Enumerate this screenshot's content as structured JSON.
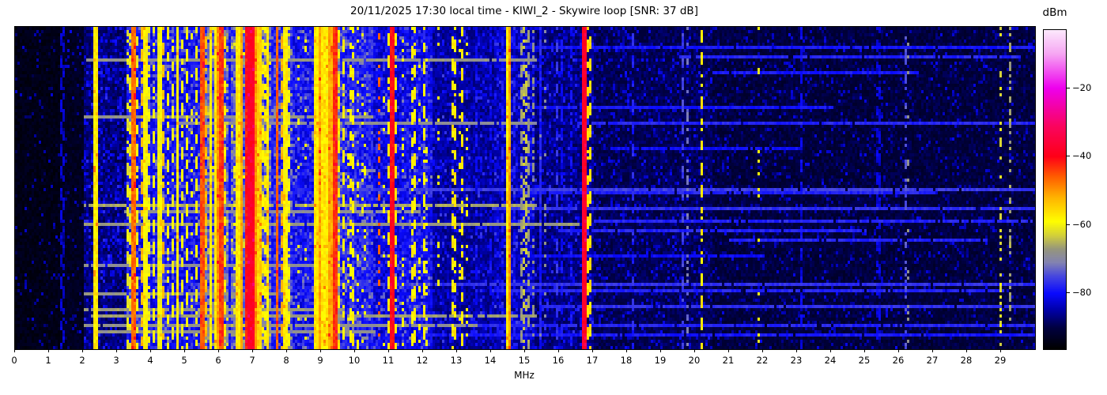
{
  "figure": {
    "title": "20/11/2025 17:30 local time - KIWI_2 - Skywire loop [SNR: 37 dB]",
    "xlabel": "MHz",
    "colorbar_label": "dBm"
  },
  "chart_data": {
    "type": "heatmap",
    "title": "20/11/2025 17:30 local time - KIWI_2 - Skywire loop [SNR: 37 dB]",
    "xlabel": "MHz",
    "x_range_mhz": [
      0,
      30
    ],
    "x_tick_labels": [
      "0",
      "1",
      "2",
      "3",
      "4",
      "5",
      "6",
      "7",
      "8",
      "9",
      "10",
      "11",
      "12",
      "13",
      "14",
      "15",
      "16",
      "17",
      "18",
      "19",
      "20",
      "21",
      "22",
      "23",
      "24",
      "25",
      "26",
      "27",
      "28",
      "29"
    ],
    "grid": {
      "cols": 430,
      "rows": 102
    },
    "colorbar": {
      "label": "dBm",
      "vmax": -3,
      "vmin": -96.3,
      "ticks": [
        {
          "label": "−20",
          "value": -20
        },
        {
          "label": "−40",
          "value": -40
        },
        {
          "label": "−60",
          "value": -60
        },
        {
          "label": "−80",
          "value": -80
        }
      ]
    },
    "colormap_stops": [
      [
        -96.3,
        "#000000"
      ],
      [
        -90,
        "#000041"
      ],
      [
        -85,
        "#0000a6"
      ],
      [
        -80,
        "#0a0aff"
      ],
      [
        -75,
        "#4747e0"
      ],
      [
        -71,
        "#8383b2"
      ],
      [
        -67,
        "#97977c"
      ],
      [
        -63,
        "#d4d13a"
      ],
      [
        -59,
        "#ffff00"
      ],
      [
        -52,
        "#ffb400"
      ],
      [
        -46,
        "#ff5f00"
      ],
      [
        -40,
        "#ff0018"
      ],
      [
        -31,
        "#fa0560"
      ],
      [
        -20,
        "#ee00ee"
      ],
      [
        -10,
        "#f6a6f3"
      ],
      [
        -3,
        "#fdeafd"
      ]
    ],
    "noise_floor_segments": [
      {
        "f0": 0.0,
        "f1": 1.35,
        "base": -94,
        "noise": 1.5,
        "speckle_p": 0.05,
        "speckle_a": 8
      },
      {
        "f0": 1.35,
        "f1": 2.0,
        "base": -93,
        "noise": 1.5,
        "speckle_p": 0.08,
        "speckle_a": 8
      },
      {
        "f0": 2.0,
        "f1": 3.25,
        "base": -87.5,
        "noise": 2.5,
        "speckle_p": 0.25,
        "speckle_a": 6
      },
      {
        "f0": 3.25,
        "f1": 5.45,
        "base": -80,
        "noise": 3.5,
        "speckle_p": 0.2,
        "speckle_a": 6
      },
      {
        "f0": 5.45,
        "f1": 7.6,
        "base": -75,
        "noise": 5.0,
        "speckle_p": 0.3,
        "speckle_a": 8
      },
      {
        "f0": 7.6,
        "f1": 8.15,
        "base": -78,
        "noise": 4.0,
        "speckle_p": 0.25,
        "speckle_a": 7
      },
      {
        "f0": 8.15,
        "f1": 8.8,
        "base": -80,
        "noise": 3.5,
        "speckle_p": 0.2,
        "speckle_a": 6
      },
      {
        "f0": 8.8,
        "f1": 9.55,
        "base": -71,
        "noise": 5.0,
        "speckle_p": 0.3,
        "speckle_a": 8
      },
      {
        "f0": 9.55,
        "f1": 10.55,
        "base": -79,
        "noise": 3.5,
        "speckle_p": 0.25,
        "speckle_a": 6
      },
      {
        "f0": 10.55,
        "f1": 11.3,
        "base": -82,
        "noise": 3.0,
        "speckle_p": 0.2,
        "speckle_a": 6
      },
      {
        "f0": 11.3,
        "f1": 12.3,
        "base": -81,
        "noise": 3.0,
        "speckle_p": 0.25,
        "speckle_a": 6
      },
      {
        "f0": 12.3,
        "f1": 14.1,
        "base": -85.5,
        "noise": 2.5,
        "speckle_p": 0.15,
        "speckle_a": 6
      },
      {
        "f0": 14.1,
        "f1": 15.3,
        "base": -84,
        "noise": 3.0,
        "speckle_p": 0.2,
        "speckle_a": 6
      },
      {
        "f0": 15.3,
        "f1": 17.0,
        "base": -87,
        "noise": 2.5,
        "speckle_p": 0.18,
        "speckle_a": 6
      },
      {
        "f0": 17.0,
        "f1": 20.5,
        "base": -89,
        "noise": 2.0,
        "speckle_p": 0.15,
        "speckle_a": 6
      },
      {
        "f0": 20.5,
        "f1": 30.0,
        "base": -90.5,
        "noise": 2.0,
        "speckle_p": 0.12,
        "speckle_a": 6
      }
    ],
    "signal_columns": [
      {
        "f": 1.385,
        "w": 0.05,
        "level": -83,
        "style": "dashed"
      },
      {
        "f": 2.38,
        "w": 0.07,
        "level": -57,
        "style": "solid"
      },
      {
        "f": 3.36,
        "w": 0.05,
        "level": -61,
        "style": "dashed"
      },
      {
        "f": 3.5,
        "w": 0.05,
        "level": -47,
        "style": "solid"
      },
      {
        "f": 3.62,
        "w": 0.04,
        "level": -60,
        "style": "dashed"
      },
      {
        "f": 3.73,
        "w": 0.05,
        "level": -53,
        "style": "dashed"
      },
      {
        "f": 3.85,
        "w": 0.05,
        "level": -59,
        "style": "solid"
      },
      {
        "f": 3.96,
        "w": 0.04,
        "level": -60,
        "style": "dashed"
      },
      {
        "f": 4.1,
        "w": 0.05,
        "level": -59,
        "style": "dashed"
      },
      {
        "f": 4.26,
        "w": 0.05,
        "level": -60,
        "style": "solid"
      },
      {
        "f": 4.36,
        "w": 0.04,
        "level": -53,
        "style": "dashed"
      },
      {
        "f": 4.5,
        "w": 0.05,
        "level": -59,
        "style": "dashed"
      },
      {
        "f": 4.63,
        "w": 0.04,
        "level": -60,
        "style": "dashed"
      },
      {
        "f": 4.78,
        "w": 0.05,
        "level": -58,
        "style": "solid"
      },
      {
        "f": 4.93,
        "w": 0.04,
        "level": -60,
        "style": "dashed"
      },
      {
        "f": 5.06,
        "w": 0.05,
        "level": -59,
        "style": "dashed"
      },
      {
        "f": 5.17,
        "w": 0.04,
        "level": -61,
        "style": "sparse"
      },
      {
        "f": 5.33,
        "w": 0.05,
        "level": -59,
        "style": "dashed"
      },
      {
        "f": 5.5,
        "w": 0.06,
        "level": -45,
        "style": "solid"
      },
      {
        "f": 5.63,
        "w": 0.05,
        "level": -53,
        "style": "dashed"
      },
      {
        "f": 5.76,
        "w": 0.05,
        "level": -58,
        "style": "solid"
      },
      {
        "f": 5.9,
        "w": 0.06,
        "level": -57,
        "style": "solid"
      },
      {
        "f": 6.0,
        "w": 0.05,
        "level": -50,
        "style": "solid"
      },
      {
        "f": 6.08,
        "w": 0.05,
        "level": -44,
        "style": "solid"
      },
      {
        "f": 6.19,
        "w": 0.05,
        "level": -57,
        "style": "dashed"
      },
      {
        "f": 6.32,
        "w": 0.06,
        "level": -80,
        "style": "solid"
      },
      {
        "f": 6.45,
        "w": 0.04,
        "level": -60,
        "style": "sparse"
      },
      {
        "f": 6.56,
        "w": 0.05,
        "level": -57,
        "style": "solid"
      },
      {
        "f": 6.68,
        "w": 0.05,
        "level": -51,
        "style": "solid"
      },
      {
        "f": 6.82,
        "w": 0.07,
        "level": -41,
        "style": "solid"
      },
      {
        "f": 6.95,
        "w": 0.08,
        "level": -38,
        "style": "solid"
      },
      {
        "f": 7.07,
        "w": 0.05,
        "level": -50,
        "style": "solid"
      },
      {
        "f": 7.2,
        "w": 0.06,
        "level": -55,
        "style": "solid"
      },
      {
        "f": 7.32,
        "w": 0.05,
        "level": -58,
        "style": "dashed"
      },
      {
        "f": 7.44,
        "w": 0.05,
        "level": -57,
        "style": "solid"
      },
      {
        "f": 7.56,
        "w": 0.05,
        "level": -79,
        "style": "solid"
      },
      {
        "f": 7.7,
        "w": 0.05,
        "level": -46,
        "style": "solid"
      },
      {
        "f": 7.83,
        "w": 0.05,
        "level": -52,
        "style": "dashed"
      },
      {
        "f": 7.96,
        "w": 0.05,
        "level": -58,
        "style": "solid"
      },
      {
        "f": 8.07,
        "w": 0.04,
        "level": -60,
        "style": "dashed"
      },
      {
        "f": 8.32,
        "w": 0.04,
        "level": -60,
        "style": "sparse"
      },
      {
        "f": 8.56,
        "w": 0.04,
        "level": -59,
        "style": "sparse"
      },
      {
        "f": 8.86,
        "w": 0.05,
        "level": -57,
        "style": "solid"
      },
      {
        "f": 8.96,
        "w": 0.05,
        "level": -51,
        "style": "solid"
      },
      {
        "f": 9.06,
        "w": 0.05,
        "level": -57,
        "style": "solid"
      },
      {
        "f": 9.16,
        "w": 0.05,
        "level": -58,
        "style": "solid"
      },
      {
        "f": 9.29,
        "w": 0.05,
        "level": -51,
        "style": "solid"
      },
      {
        "f": 9.41,
        "w": 0.05,
        "level": -43,
        "style": "solid"
      },
      {
        "f": 9.51,
        "w": 0.05,
        "level": -57,
        "style": "dashed"
      },
      {
        "f": 9.66,
        "w": 0.05,
        "level": -58,
        "style": "dashed"
      },
      {
        "f": 9.79,
        "w": 0.04,
        "level": -59,
        "style": "sparse"
      },
      {
        "f": 9.91,
        "w": 0.05,
        "level": -58,
        "style": "dashed"
      },
      {
        "f": 10.06,
        "w": 0.04,
        "level": -59,
        "style": "sparse"
      },
      {
        "f": 10.26,
        "w": 0.04,
        "level": -60,
        "style": "sparse"
      },
      {
        "f": 10.7,
        "w": 0.05,
        "level": -46,
        "style": "dotted"
      },
      {
        "f": 10.86,
        "w": 0.04,
        "level": -59,
        "style": "sparse"
      },
      {
        "f": 11.0,
        "w": 0.05,
        "level": -57,
        "style": "dashed"
      },
      {
        "f": 11.09,
        "w": 0.05,
        "level": -40,
        "style": "solid"
      },
      {
        "f": 11.17,
        "w": 0.04,
        "level": -57,
        "style": "dashed"
      },
      {
        "f": 11.4,
        "w": 0.03,
        "level": -60,
        "style": "sparse"
      },
      {
        "f": 11.72,
        "w": 0.04,
        "level": -58,
        "style": "dashed"
      },
      {
        "f": 11.87,
        "w": 0.04,
        "level": -59,
        "style": "sparse"
      },
      {
        "f": 12.02,
        "w": 0.04,
        "level": -58,
        "style": "dashed"
      },
      {
        "f": 12.12,
        "w": 0.04,
        "level": -59,
        "style": "sparse"
      },
      {
        "f": 12.47,
        "w": 0.04,
        "level": -58,
        "style": "sparse"
      },
      {
        "f": 12.92,
        "w": 0.05,
        "level": -57,
        "style": "dashed"
      },
      {
        "f": 13.06,
        "w": 0.04,
        "level": -59,
        "style": "sparse"
      },
      {
        "f": 13.17,
        "w": 0.05,
        "level": -57,
        "style": "dashed"
      },
      {
        "f": 13.31,
        "w": 0.04,
        "level": -58,
        "style": "sparse"
      },
      {
        "f": 13.57,
        "w": 0.04,
        "level": -80,
        "style": "dashed"
      },
      {
        "f": 14.0,
        "w": 0.04,
        "level": -81,
        "style": "dashed"
      },
      {
        "f": 14.31,
        "w": 0.04,
        "level": -79,
        "style": "dashed"
      },
      {
        "f": 14.46,
        "w": 0.04,
        "level": -57,
        "style": "solid"
      },
      {
        "f": 14.53,
        "w": 0.04,
        "level": -51,
        "style": "solid"
      },
      {
        "f": 14.66,
        "w": 0.04,
        "level": -79,
        "style": "dashed"
      },
      {
        "f": 14.87,
        "w": 0.04,
        "level": -67,
        "style": "dashed"
      },
      {
        "f": 15.0,
        "w": 0.04,
        "level": -64,
        "style": "dotted"
      },
      {
        "f": 15.12,
        "w": 0.04,
        "level": -67,
        "style": "dashed"
      },
      {
        "f": 15.22,
        "w": 0.04,
        "level": -68,
        "style": "dotted"
      },
      {
        "f": 15.46,
        "w": 0.04,
        "level": -79,
        "style": "solid"
      },
      {
        "f": 15.57,
        "w": 0.04,
        "level": -69,
        "style": "sparse"
      },
      {
        "f": 15.92,
        "w": 0.04,
        "level": -77,
        "style": "dashed"
      },
      {
        "f": 16.1,
        "w": 0.04,
        "level": -80,
        "style": "dashed"
      },
      {
        "f": 16.36,
        "w": 0.04,
        "level": -80,
        "style": "dashed"
      },
      {
        "f": 16.72,
        "w": 0.06,
        "level": -38,
        "style": "solid"
      },
      {
        "f": 16.88,
        "w": 0.04,
        "level": -56,
        "style": "dashed"
      },
      {
        "f": 17.55,
        "w": 0.03,
        "level": -83,
        "style": "sparse"
      },
      {
        "f": 18.2,
        "w": 0.04,
        "level": -78,
        "style": "dashed"
      },
      {
        "f": 18.9,
        "w": 0.03,
        "level": -82,
        "style": "sparse"
      },
      {
        "f": 19.65,
        "w": 0.04,
        "level": -76,
        "style": "dashed"
      },
      {
        "f": 19.75,
        "w": 0.04,
        "level": -72,
        "style": "dotted"
      },
      {
        "f": 20.2,
        "w": 0.04,
        "level": -57,
        "style": "dashed"
      },
      {
        "f": 21.07,
        "w": 0.03,
        "level": -82,
        "style": "sparse"
      },
      {
        "f": 21.9,
        "w": 0.03,
        "level": -60,
        "style": "sparse"
      },
      {
        "f": 22.4,
        "w": 0.03,
        "level": -82,
        "style": "sparse"
      },
      {
        "f": 23.1,
        "w": 0.04,
        "level": -81,
        "style": "dashed"
      },
      {
        "f": 25.4,
        "w": 0.04,
        "level": -82,
        "style": "dashed"
      },
      {
        "f": 26.2,
        "w": 0.05,
        "level": -74,
        "style": "dotted"
      },
      {
        "f": 26.27,
        "w": 0.03,
        "level": -68,
        "style": "sparse"
      },
      {
        "f": 29.0,
        "w": 0.04,
        "level": -62,
        "style": "dotted"
      },
      {
        "f": 29.25,
        "w": 0.04,
        "level": -66,
        "style": "dotted"
      }
    ],
    "sweep_lines": [
      {
        "r": 0.1,
        "f0": 2.1,
        "f1": 15.3,
        "level": -68
      },
      {
        "r": 0.28,
        "f0": 2.0,
        "f1": 10.5,
        "level": -68
      },
      {
        "r": 0.295,
        "f0": 4.8,
        "f1": 15.3,
        "level": -69
      },
      {
        "r": 0.555,
        "f0": 2.0,
        "f1": 15.3,
        "level": -66
      },
      {
        "r": 0.575,
        "f0": 3.2,
        "f1": 12.0,
        "level": -69
      },
      {
        "r": 0.615,
        "f0": 2.0,
        "f1": 16.5,
        "level": -67
      },
      {
        "r": 0.745,
        "f0": 2.0,
        "f1": 9.5,
        "level": -69
      },
      {
        "r": 0.835,
        "f0": 2.0,
        "f1": 7.6,
        "level": -68
      },
      {
        "r": 0.88,
        "f0": 2.0,
        "f1": 9.6,
        "level": -67
      },
      {
        "r": 0.905,
        "f0": 2.2,
        "f1": 15.3,
        "level": -67
      },
      {
        "r": 0.93,
        "f0": 2.0,
        "f1": 13.5,
        "level": -68
      },
      {
        "r": 0.955,
        "f0": 2.3,
        "f1": 10.5,
        "level": -68
      },
      {
        "r": 0.06,
        "f0": 14.5,
        "f1": 30.0,
        "level": -79
      },
      {
        "r": 0.085,
        "f0": 19.5,
        "f1": 29.5,
        "level": -78
      },
      {
        "r": 0.14,
        "f0": 20.5,
        "f1": 26.5,
        "level": -79
      },
      {
        "r": 0.25,
        "f0": 15.0,
        "f1": 24.0,
        "level": -79
      },
      {
        "r": 0.3,
        "f0": 16.5,
        "f1": 30.0,
        "level": -78
      },
      {
        "r": 0.38,
        "f0": 17.5,
        "f1": 23.0,
        "level": -80
      },
      {
        "r": 0.5,
        "f0": 9.5,
        "f1": 30.0,
        "level": -76
      },
      {
        "r": 0.515,
        "f0": 15.0,
        "f1": 27.0,
        "level": -78
      },
      {
        "r": 0.56,
        "f0": 14.0,
        "f1": 30.0,
        "level": -77
      },
      {
        "r": 0.6,
        "f0": 17.0,
        "f1": 30.0,
        "level": -78
      },
      {
        "r": 0.635,
        "f0": 16.0,
        "f1": 25.0,
        "level": -78
      },
      {
        "r": 0.66,
        "f0": 21.0,
        "f1": 28.5,
        "level": -78
      },
      {
        "r": 0.71,
        "f0": 15.0,
        "f1": 22.0,
        "level": -80
      },
      {
        "r": 0.8,
        "f0": 10.5,
        "f1": 30.0,
        "level": -77
      },
      {
        "r": 0.825,
        "f0": 14.0,
        "f1": 29.0,
        "level": -78
      },
      {
        "r": 0.87,
        "f0": 15.5,
        "f1": 30.0,
        "level": -77
      },
      {
        "r": 0.935,
        "f0": 8.0,
        "f1": 30.0,
        "level": -78
      },
      {
        "r": 0.965,
        "f0": 12.0,
        "f1": 30.0,
        "level": -79
      }
    ]
  }
}
